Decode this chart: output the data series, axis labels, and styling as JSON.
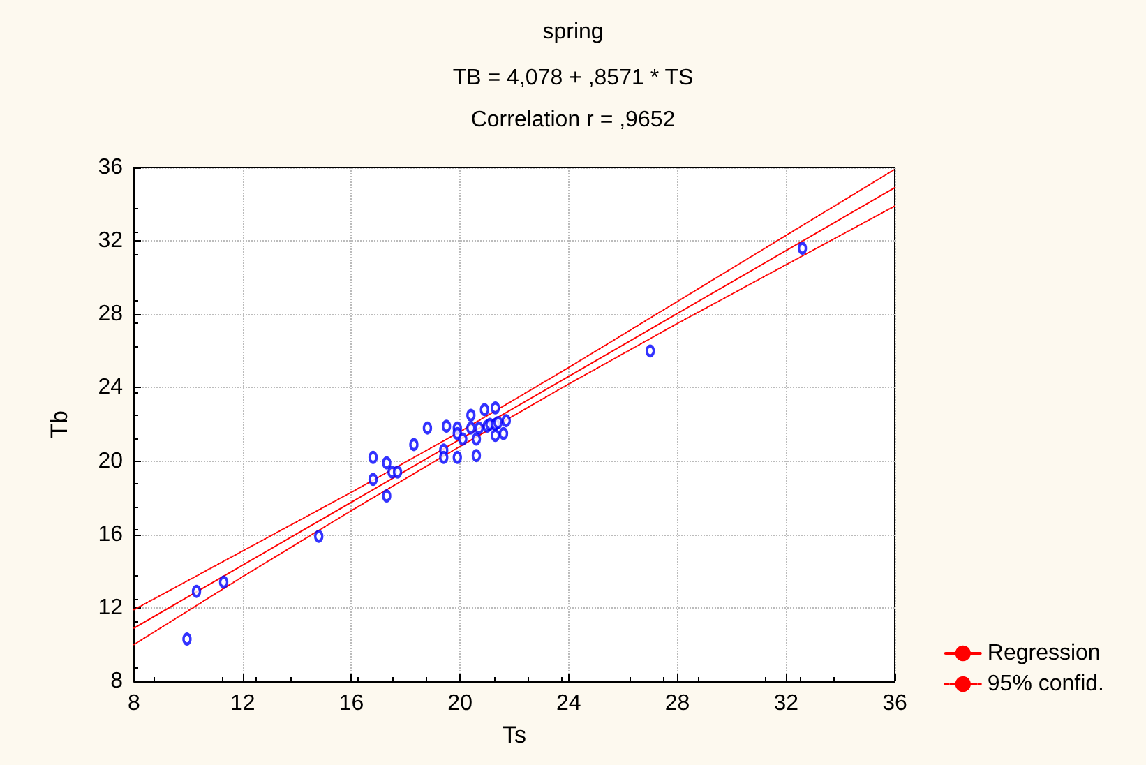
{
  "chart_data": {
    "type": "scatter",
    "title": "spring",
    "subtitle": "TB = 4,078 + ,8571 * TS\nCorrelation r = ,9652",
    "xlabel": "Ts",
    "ylabel": "Tb",
    "xlim": [
      8,
      36
    ],
    "xticks": [
      8,
      12,
      16,
      20,
      24,
      28,
      32,
      36
    ],
    "ylim": [
      8,
      36
    ],
    "yticks": [
      8,
      12,
      16,
      20,
      24,
      28,
      32,
      36
    ],
    "grid": true,
    "legend": "bottom right",
    "series": [
      {
        "marker": "circle",
        "color": "#0000ff",
        "x": [
          9.95,
          10.3,
          11.3,
          14.8,
          16.8,
          16.8,
          17.3,
          17.3,
          17.5,
          17.7,
          18.3,
          18.8,
          19.4,
          19.4,
          19.5,
          19.9,
          19.9,
          19.9,
          20.1,
          20.4,
          20.4,
          20.6,
          20.6,
          20.7,
          20.9,
          21.0,
          21.1,
          21.3,
          21.3,
          21.3,
          21.4,
          21.6,
          21.7,
          27.0,
          32.6
        ],
        "values": [
          10.3,
          12.9,
          13.4,
          15.9,
          20.2,
          19.0,
          19.9,
          18.1,
          19.4,
          19.4,
          20.9,
          21.8,
          20.6,
          20.2,
          21.9,
          21.8,
          21.5,
          20.2,
          21.2,
          21.8,
          22.5,
          20.3,
          21.2,
          21.8,
          22.8,
          21.9,
          22.0,
          22.0,
          22.9,
          21.4,
          22.1,
          21.5,
          22.2,
          26.0,
          31.6
        ]
      },
      {
        "type": "line",
        "name": "Regression",
        "color": "#ff0000",
        "marker": "none",
        "line_style": "solid",
        "x": [
          8,
          36
        ],
        "values": [
          10.9,
          34.9
        ]
      },
      {
        "type": "line",
        "name": "95% confid.",
        "color": "#ff0000",
        "marker": "none",
        "line_style": "dotted",
        "x": [
          8,
          12,
          16,
          20,
          24,
          28,
          32,
          36
        ],
        "values": [
          11.9,
          15.1,
          18.3,
          21.6,
          25.1,
          28.7,
          32.3,
          35.9
        ]
      },
      {
        "type": "line",
        "color": "#ff0000",
        "marker": "none",
        "line_style": "dotted",
        "x": [
          8,
          12,
          16,
          20,
          24,
          28,
          32,
          36
        ],
        "values": [
          10.0,
          13.7,
          17.3,
          20.8,
          24.2,
          27.5,
          30.7,
          33.9
        ]
      }
    ]
  }
}
